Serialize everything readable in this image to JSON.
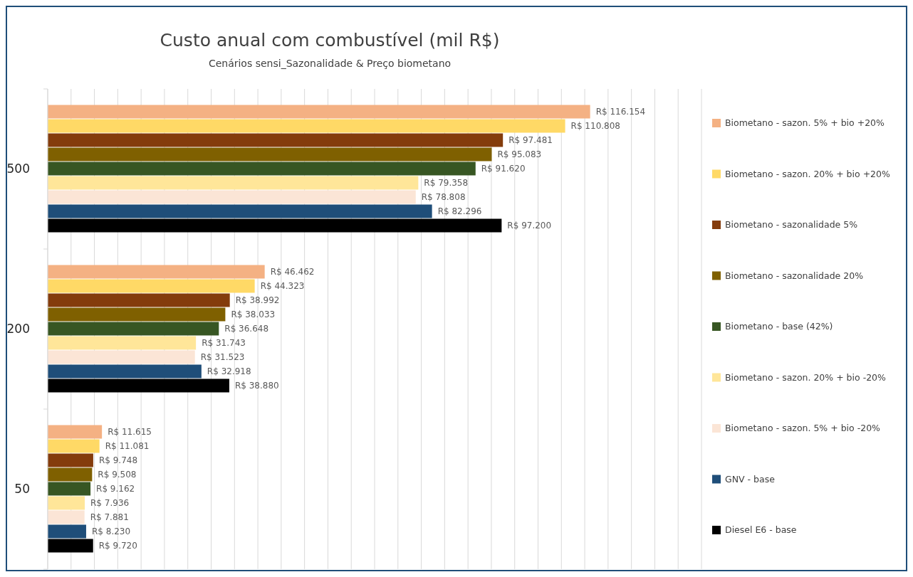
{
  "chart_data": {
    "type": "bar",
    "orientation": "horizontal",
    "title": "Custo anual com combustível (mil R$)",
    "subtitle": "Cenários sensi_Sazonalidade & Preço biometano",
    "categories": [
      "500",
      "200",
      "50"
    ],
    "series": [
      {
        "name": "Biometano - sazon. 5% + bio +20%",
        "color": "#f4b183",
        "values": [
          116.154,
          46.462,
          11.615
        ],
        "value_labels": [
          "R$ 116.154",
          "R$ 46.462",
          "R$ 11.615"
        ]
      },
      {
        "name": "Biometano - sazon. 20% + bio +20%",
        "color": "#ffd966",
        "values": [
          110.808,
          44.323,
          11.081
        ],
        "value_labels": [
          "R$ 110.808",
          "R$ 44.323",
          "R$ 11.081"
        ]
      },
      {
        "name": "Biometano - sazonalidade 5%",
        "color": "#843c0c",
        "values": [
          97.481,
          38.992,
          9.748
        ],
        "value_labels": [
          "R$ 97.481",
          "R$ 38.992",
          "R$ 9.748"
        ]
      },
      {
        "name": "Biometano - sazonalidade 20%",
        "color": "#7f6000",
        "values": [
          95.083,
          38.033,
          9.508
        ],
        "value_labels": [
          "R$ 95.083",
          "R$ 38.033",
          "R$ 9.508"
        ]
      },
      {
        "name": "Biometano - base (42%)",
        "color": "#375623",
        "values": [
          91.62,
          36.648,
          9.162
        ],
        "value_labels": [
          "R$ 91.620",
          "R$ 36.648",
          "R$ 9.162"
        ]
      },
      {
        "name": "Biometano - sazon. 20% + bio -20%",
        "color": "#ffe699",
        "values": [
          79.358,
          31.743,
          7.936
        ],
        "value_labels": [
          "R$ 79.358",
          "R$ 31.743",
          "R$ 7.936"
        ]
      },
      {
        "name": "Biometano - sazon. 5% + bio -20%",
        "color": "#fbe5d6",
        "values": [
          78.808,
          31.523,
          7.881
        ],
        "value_labels": [
          "R$ 78.808",
          "R$ 31.523",
          "R$ 7.881"
        ]
      },
      {
        "name": "GNV - base",
        "color": "#1f4e79",
        "values": [
          82.296,
          32.918,
          8.23
        ],
        "value_labels": [
          "R$ 82.296",
          "R$ 32.918",
          "R$ 8.230"
        ]
      },
      {
        "name": "Diesel E6 - base",
        "color": "#000000",
        "values": [
          97.2,
          38.88,
          9.72
        ],
        "value_labels": [
          "R$ 97.200",
          "R$ 38.880",
          "R$ 9.720"
        ]
      }
    ],
    "xlim": [
      0,
      140
    ],
    "xticks": [
      {
        "value": 0,
        "label": null
      },
      {
        "value": 5,
        "label": null
      },
      {
        "value": 10,
        "label": null
      },
      {
        "value": 15,
        "label": null
      },
      {
        "value": 20,
        "label": null
      },
      {
        "value": 25,
        "label": null
      },
      {
        "value": 30,
        "label": null
      },
      {
        "value": 35,
        "label": null
      },
      {
        "value": 40,
        "label": null
      },
      {
        "value": 45,
        "label": null
      },
      {
        "value": 50,
        "label": null
      },
      {
        "value": 55,
        "label": null
      },
      {
        "value": 60,
        "label": null
      },
      {
        "value": 65,
        "label": null
      },
      {
        "value": 70,
        "label": null
      },
      {
        "value": 75,
        "label": null
      },
      {
        "value": 80,
        "label": null
      },
      {
        "value": 85,
        "label": null
      },
      {
        "value": 90,
        "label": null
      },
      {
        "value": 95,
        "label": null
      },
      {
        "value": 100,
        "label": null
      },
      {
        "value": 105,
        "label": null
      },
      {
        "value": 110,
        "label": null
      },
      {
        "value": 115,
        "label": null
      },
      {
        "value": 120,
        "label": null
      },
      {
        "value": 125,
        "label": null
      },
      {
        "value": 130,
        "label": null
      },
      {
        "value": 135,
        "label": null
      },
      {
        "value": 140,
        "label": null
      }
    ],
    "tick_labels": "y",
    "grid": "x",
    "legend": "right"
  }
}
